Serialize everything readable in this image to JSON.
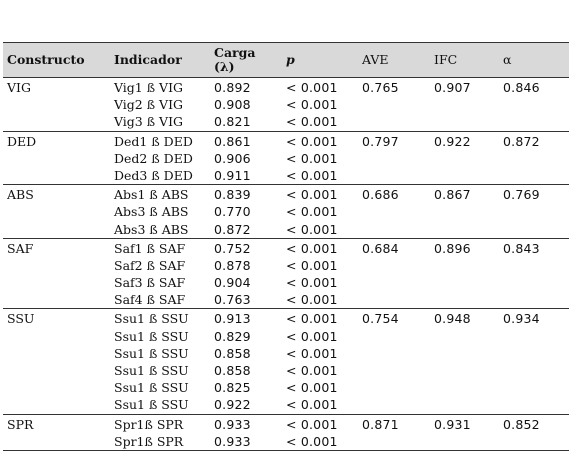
{
  "headers": {
    "constructo": "Constructo",
    "indicador": "Indicador",
    "carga_line1": "Carga",
    "carga_line2": "(λ)",
    "p": "p",
    "ave": "AVE",
    "ifc": "IFC",
    "alpha": "α"
  },
  "groups": [
    {
      "constructo": "VIG",
      "indicadores": [
        "Vig1 ß VIG",
        "Vig2 ß VIG",
        "Vig3 ß VIG"
      ],
      "cargas": [
        "0.892",
        "0.908",
        "0.821"
      ],
      "p": [
        "< 0.001",
        "< 0.001",
        "< 0.001"
      ],
      "ave": "0.765",
      "ifc": "0.907",
      "alpha": "0.846"
    },
    {
      "constructo": "DED",
      "indicadores": [
        "Ded1 ß DED",
        "Ded2 ß DED",
        "Ded3 ß DED"
      ],
      "cargas": [
        "0.861",
        "0.906",
        "0.911"
      ],
      "p": [
        "< 0.001",
        "< 0.001",
        "< 0.001"
      ],
      "ave": "0.797",
      "ifc": "0.922",
      "alpha": "0.872"
    },
    {
      "constructo": "ABS",
      "indicadores": [
        "Abs1 ß ABS",
        "Abs3 ß ABS",
        "Abs3 ß ABS"
      ],
      "cargas": [
        "0.839",
        "0.770",
        "0.872"
      ],
      "p": [
        "< 0.001",
        "< 0.001",
        "< 0.001"
      ],
      "ave": "0.686",
      "ifc": "0.867",
      "alpha": "0.769"
    },
    {
      "constructo": "SAF",
      "indicadores": [
        "Saf1 ß SAF",
        "Saf2 ß SAF",
        "Saf3 ß SAF",
        "Saf4 ß SAF"
      ],
      "cargas": [
        "0.752",
        "0.878",
        "0.904",
        "0.763"
      ],
      "p": [
        "< 0.001",
        "< 0.001",
        "< 0.001",
        "< 0.001"
      ],
      "ave": "0.684",
      "ifc": "0.896",
      "alpha": "0.843"
    },
    {
      "constructo": "SSU",
      "indicadores": [
        "Ssu1 ß SSU",
        "Ssu1 ß SSU",
        "Ssu1 ß SSU",
        "Ssu1 ß SSU",
        "Ssu1 ß SSU",
        "Ssu1 ß SSU"
      ],
      "cargas": [
        "0.913",
        "0.829",
        "0.858",
        "0.858",
        "0.825",
        "0.922"
      ],
      "p": [
        "< 0.001",
        "< 0.001",
        "< 0.001",
        "< 0.001",
        "< 0.001",
        "< 0.001"
      ],
      "ave": "0.754",
      "ifc": "0.948",
      "alpha": "0.934"
    },
    {
      "constructo": "SPR",
      "indicadores": [
        "Spr1ß SPR",
        "Spr1ß SPR"
      ],
      "cargas": [
        "0.933",
        "0.933"
      ],
      "p": [
        "< 0.001",
        "< 0.001"
      ],
      "ave": "0.871",
      "ifc": "0.931",
      "alpha": "0.852"
    }
  ]
}
